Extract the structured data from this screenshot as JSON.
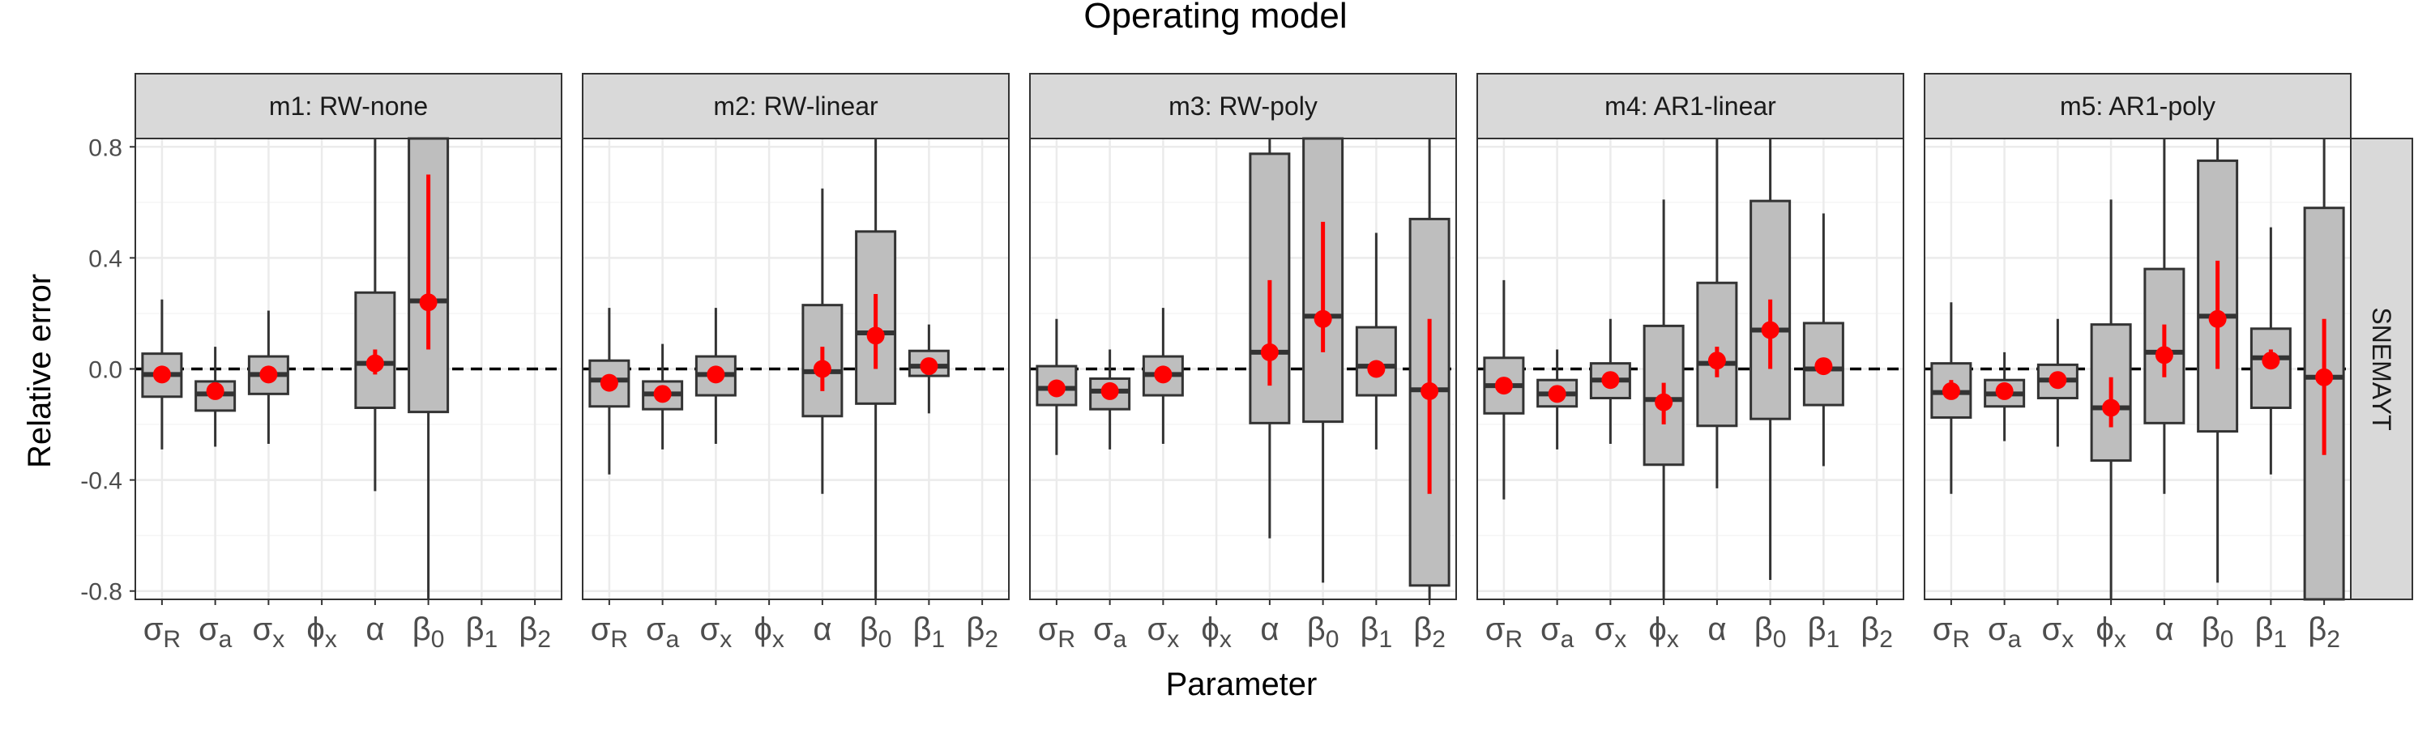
{
  "chart_data": {
    "type": "boxplot",
    "title": "Operating model",
    "xlabel": "Parameter",
    "ylabel": "Relative error",
    "strip_right": "SNEMAYT",
    "ylim": [
      -0.83,
      0.83
    ],
    "y_ticks": [
      {
        "value": -0.8,
        "label": "-0.8"
      },
      {
        "value": -0.4,
        "label": "-0.4"
      },
      {
        "value": 0.0,
        "label": "0.0"
      },
      {
        "value": 0.4,
        "label": "0.4"
      },
      {
        "value": 0.8,
        "label": "0.8"
      }
    ],
    "reference_line": 0,
    "parameters": [
      {
        "sym": "σ",
        "sub": "R"
      },
      {
        "sym": "σ",
        "sub": "a"
      },
      {
        "sym": "σ",
        "sub": "x"
      },
      {
        "sym": "ϕ",
        "sub": "x"
      },
      {
        "sym": "α",
        "sub": ""
      },
      {
        "sym": "β",
        "sub": "0"
      },
      {
        "sym": "β",
        "sub": "1"
      },
      {
        "sym": "β",
        "sub": "2"
      }
    ],
    "colors": {
      "box_fill": "#bebebe",
      "box_stroke": "#333333",
      "point": "#ff0000",
      "strip_fill": "#d9d9d9",
      "grid_major": "#ebebeb",
      "grid_minor": "#f5f5f5"
    },
    "panels": [
      {
        "label": "m1:  RW-none",
        "boxes": [
          {
            "param": 0,
            "wlo": -0.29,
            "q1": -0.1,
            "med": -0.02,
            "q3": 0.055,
            "whi": 0.25,
            "mean": -0.02,
            "ilo": -0.04,
            "ihi": 0.0
          },
          {
            "param": 1,
            "wlo": -0.28,
            "q1": -0.15,
            "med": -0.09,
            "q3": -0.045,
            "whi": 0.08,
            "mean": -0.08,
            "ilo": -0.1,
            "ihi": -0.06
          },
          {
            "param": 2,
            "wlo": -0.27,
            "q1": -0.09,
            "med": -0.02,
            "q3": 0.045,
            "whi": 0.21,
            "mean": -0.02,
            "ilo": -0.04,
            "ihi": 0.0
          },
          {
            "param": 4,
            "wlo": -0.44,
            "q1": -0.14,
            "med": 0.02,
            "q3": 0.275,
            "whi": 0.83,
            "mean": 0.02,
            "ilo": -0.02,
            "ihi": 0.07
          },
          {
            "param": 5,
            "wlo": -0.83,
            "q1": -0.155,
            "med": 0.245,
            "q3": 0.83,
            "whi": 0.83,
            "mean": 0.24,
            "ilo": 0.07,
            "ihi": 0.7
          }
        ]
      },
      {
        "label": "m2:  RW-linear",
        "boxes": [
          {
            "param": 0,
            "wlo": -0.38,
            "q1": -0.135,
            "med": -0.04,
            "q3": 0.03,
            "whi": 0.22,
            "mean": -0.05,
            "ilo": -0.07,
            "ihi": -0.02
          },
          {
            "param": 1,
            "wlo": -0.29,
            "q1": -0.145,
            "med": -0.09,
            "q3": -0.045,
            "whi": 0.09,
            "mean": -0.09,
            "ilo": -0.11,
            "ihi": -0.06
          },
          {
            "param": 2,
            "wlo": -0.27,
            "q1": -0.095,
            "med": -0.02,
            "q3": 0.045,
            "whi": 0.22,
            "mean": -0.02,
            "ilo": -0.04,
            "ihi": 0.0
          },
          {
            "param": 4,
            "wlo": -0.45,
            "q1": -0.17,
            "med": -0.01,
            "q3": 0.23,
            "whi": 0.65,
            "mean": 0.0,
            "ilo": -0.08,
            "ihi": 0.08
          },
          {
            "param": 5,
            "wlo": -0.83,
            "q1": -0.125,
            "med": 0.13,
            "q3": 0.495,
            "whi": 0.83,
            "mean": 0.12,
            "ilo": 0.0,
            "ihi": 0.27
          },
          {
            "param": 6,
            "wlo": -0.16,
            "q1": -0.025,
            "med": 0.01,
            "q3": 0.065,
            "whi": 0.16,
            "mean": 0.01,
            "ilo": -0.02,
            "ihi": 0.03
          }
        ]
      },
      {
        "label": "m3:  RW-poly",
        "boxes": [
          {
            "param": 0,
            "wlo": -0.31,
            "q1": -0.13,
            "med": -0.07,
            "q3": 0.01,
            "whi": 0.18,
            "mean": -0.07,
            "ilo": -0.09,
            "ihi": -0.05
          },
          {
            "param": 1,
            "wlo": -0.29,
            "q1": -0.145,
            "med": -0.08,
            "q3": -0.035,
            "whi": 0.07,
            "mean": -0.08,
            "ilo": -0.1,
            "ihi": -0.06
          },
          {
            "param": 2,
            "wlo": -0.27,
            "q1": -0.095,
            "med": -0.02,
            "q3": 0.045,
            "whi": 0.22,
            "mean": -0.02,
            "ilo": -0.04,
            "ihi": 0.0
          },
          {
            "param": 4,
            "wlo": -0.61,
            "q1": -0.195,
            "med": 0.06,
            "q3": 0.775,
            "whi": 0.83,
            "mean": 0.06,
            "ilo": -0.06,
            "ihi": 0.32
          },
          {
            "param": 5,
            "wlo": -0.77,
            "q1": -0.19,
            "med": 0.19,
            "q3": 0.83,
            "whi": 0.83,
            "mean": 0.18,
            "ilo": 0.06,
            "ihi": 0.53
          },
          {
            "param": 6,
            "wlo": -0.29,
            "q1": -0.095,
            "med": 0.01,
            "q3": 0.15,
            "whi": 0.49,
            "mean": 0.0,
            "ilo": -0.03,
            "ihi": 0.03
          },
          {
            "param": 7,
            "wlo": -0.83,
            "q1": -0.78,
            "med": -0.075,
            "q3": 0.54,
            "whi": 0.83,
            "mean": -0.08,
            "ilo": -0.45,
            "ihi": 0.18
          }
        ]
      },
      {
        "label": "m4:  AR1-linear",
        "boxes": [
          {
            "param": 0,
            "wlo": -0.47,
            "q1": -0.16,
            "med": -0.06,
            "q3": 0.04,
            "whi": 0.32,
            "mean": -0.06,
            "ilo": -0.09,
            "ihi": -0.03
          },
          {
            "param": 1,
            "wlo": -0.29,
            "q1": -0.135,
            "med": -0.09,
            "q3": -0.04,
            "whi": 0.07,
            "mean": -0.09,
            "ilo": -0.11,
            "ihi": -0.07
          },
          {
            "param": 2,
            "wlo": -0.27,
            "q1": -0.105,
            "med": -0.04,
            "q3": 0.02,
            "whi": 0.18,
            "mean": -0.04,
            "ilo": -0.06,
            "ihi": -0.02
          },
          {
            "param": 3,
            "wlo": -0.83,
            "q1": -0.345,
            "med": -0.11,
            "q3": 0.155,
            "whi": 0.61,
            "mean": -0.12,
            "ilo": -0.2,
            "ihi": -0.05
          },
          {
            "param": 4,
            "wlo": -0.43,
            "q1": -0.205,
            "med": 0.02,
            "q3": 0.31,
            "whi": 0.83,
            "mean": 0.03,
            "ilo": -0.03,
            "ihi": 0.08
          },
          {
            "param": 5,
            "wlo": -0.76,
            "q1": -0.18,
            "med": 0.14,
            "q3": 0.605,
            "whi": 0.83,
            "mean": 0.14,
            "ilo": 0.0,
            "ihi": 0.25
          },
          {
            "param": 6,
            "wlo": -0.35,
            "q1": -0.13,
            "med": 0.0,
            "q3": 0.165,
            "whi": 0.56,
            "mean": 0.01,
            "ilo": -0.02,
            "ihi": 0.04
          }
        ]
      },
      {
        "label": "m5:  AR1-poly",
        "boxes": [
          {
            "param": 0,
            "wlo": -0.45,
            "q1": -0.175,
            "med": -0.085,
            "q3": 0.02,
            "whi": 0.24,
            "mean": -0.08,
            "ilo": -0.11,
            "ihi": -0.04
          },
          {
            "param": 1,
            "wlo": -0.26,
            "q1": -0.135,
            "med": -0.09,
            "q3": -0.04,
            "whi": 0.06,
            "mean": -0.08,
            "ilo": -0.1,
            "ihi": -0.06
          },
          {
            "param": 2,
            "wlo": -0.28,
            "q1": -0.105,
            "med": -0.04,
            "q3": 0.015,
            "whi": 0.18,
            "mean": -0.04,
            "ilo": -0.06,
            "ihi": -0.02
          },
          {
            "param": 3,
            "wlo": -0.83,
            "q1": -0.33,
            "med": -0.14,
            "q3": 0.16,
            "whi": 0.61,
            "mean": -0.14,
            "ilo": -0.21,
            "ihi": -0.03
          },
          {
            "param": 4,
            "wlo": -0.45,
            "q1": -0.195,
            "med": 0.06,
            "q3": 0.36,
            "whi": 0.83,
            "mean": 0.05,
            "ilo": -0.03,
            "ihi": 0.16
          },
          {
            "param": 5,
            "wlo": -0.77,
            "q1": -0.225,
            "med": 0.19,
            "q3": 0.75,
            "whi": 0.83,
            "mean": 0.18,
            "ilo": 0.0,
            "ihi": 0.39
          },
          {
            "param": 6,
            "wlo": -0.38,
            "q1": -0.14,
            "med": 0.04,
            "q3": 0.145,
            "whi": 0.51,
            "mean": 0.03,
            "ilo": 0.0,
            "ihi": 0.07
          },
          {
            "param": 7,
            "wlo": -0.83,
            "q1": -0.83,
            "med": -0.03,
            "q3": 0.58,
            "whi": 0.83,
            "mean": -0.03,
            "ilo": -0.31,
            "ihi": 0.18
          }
        ]
      }
    ]
  }
}
